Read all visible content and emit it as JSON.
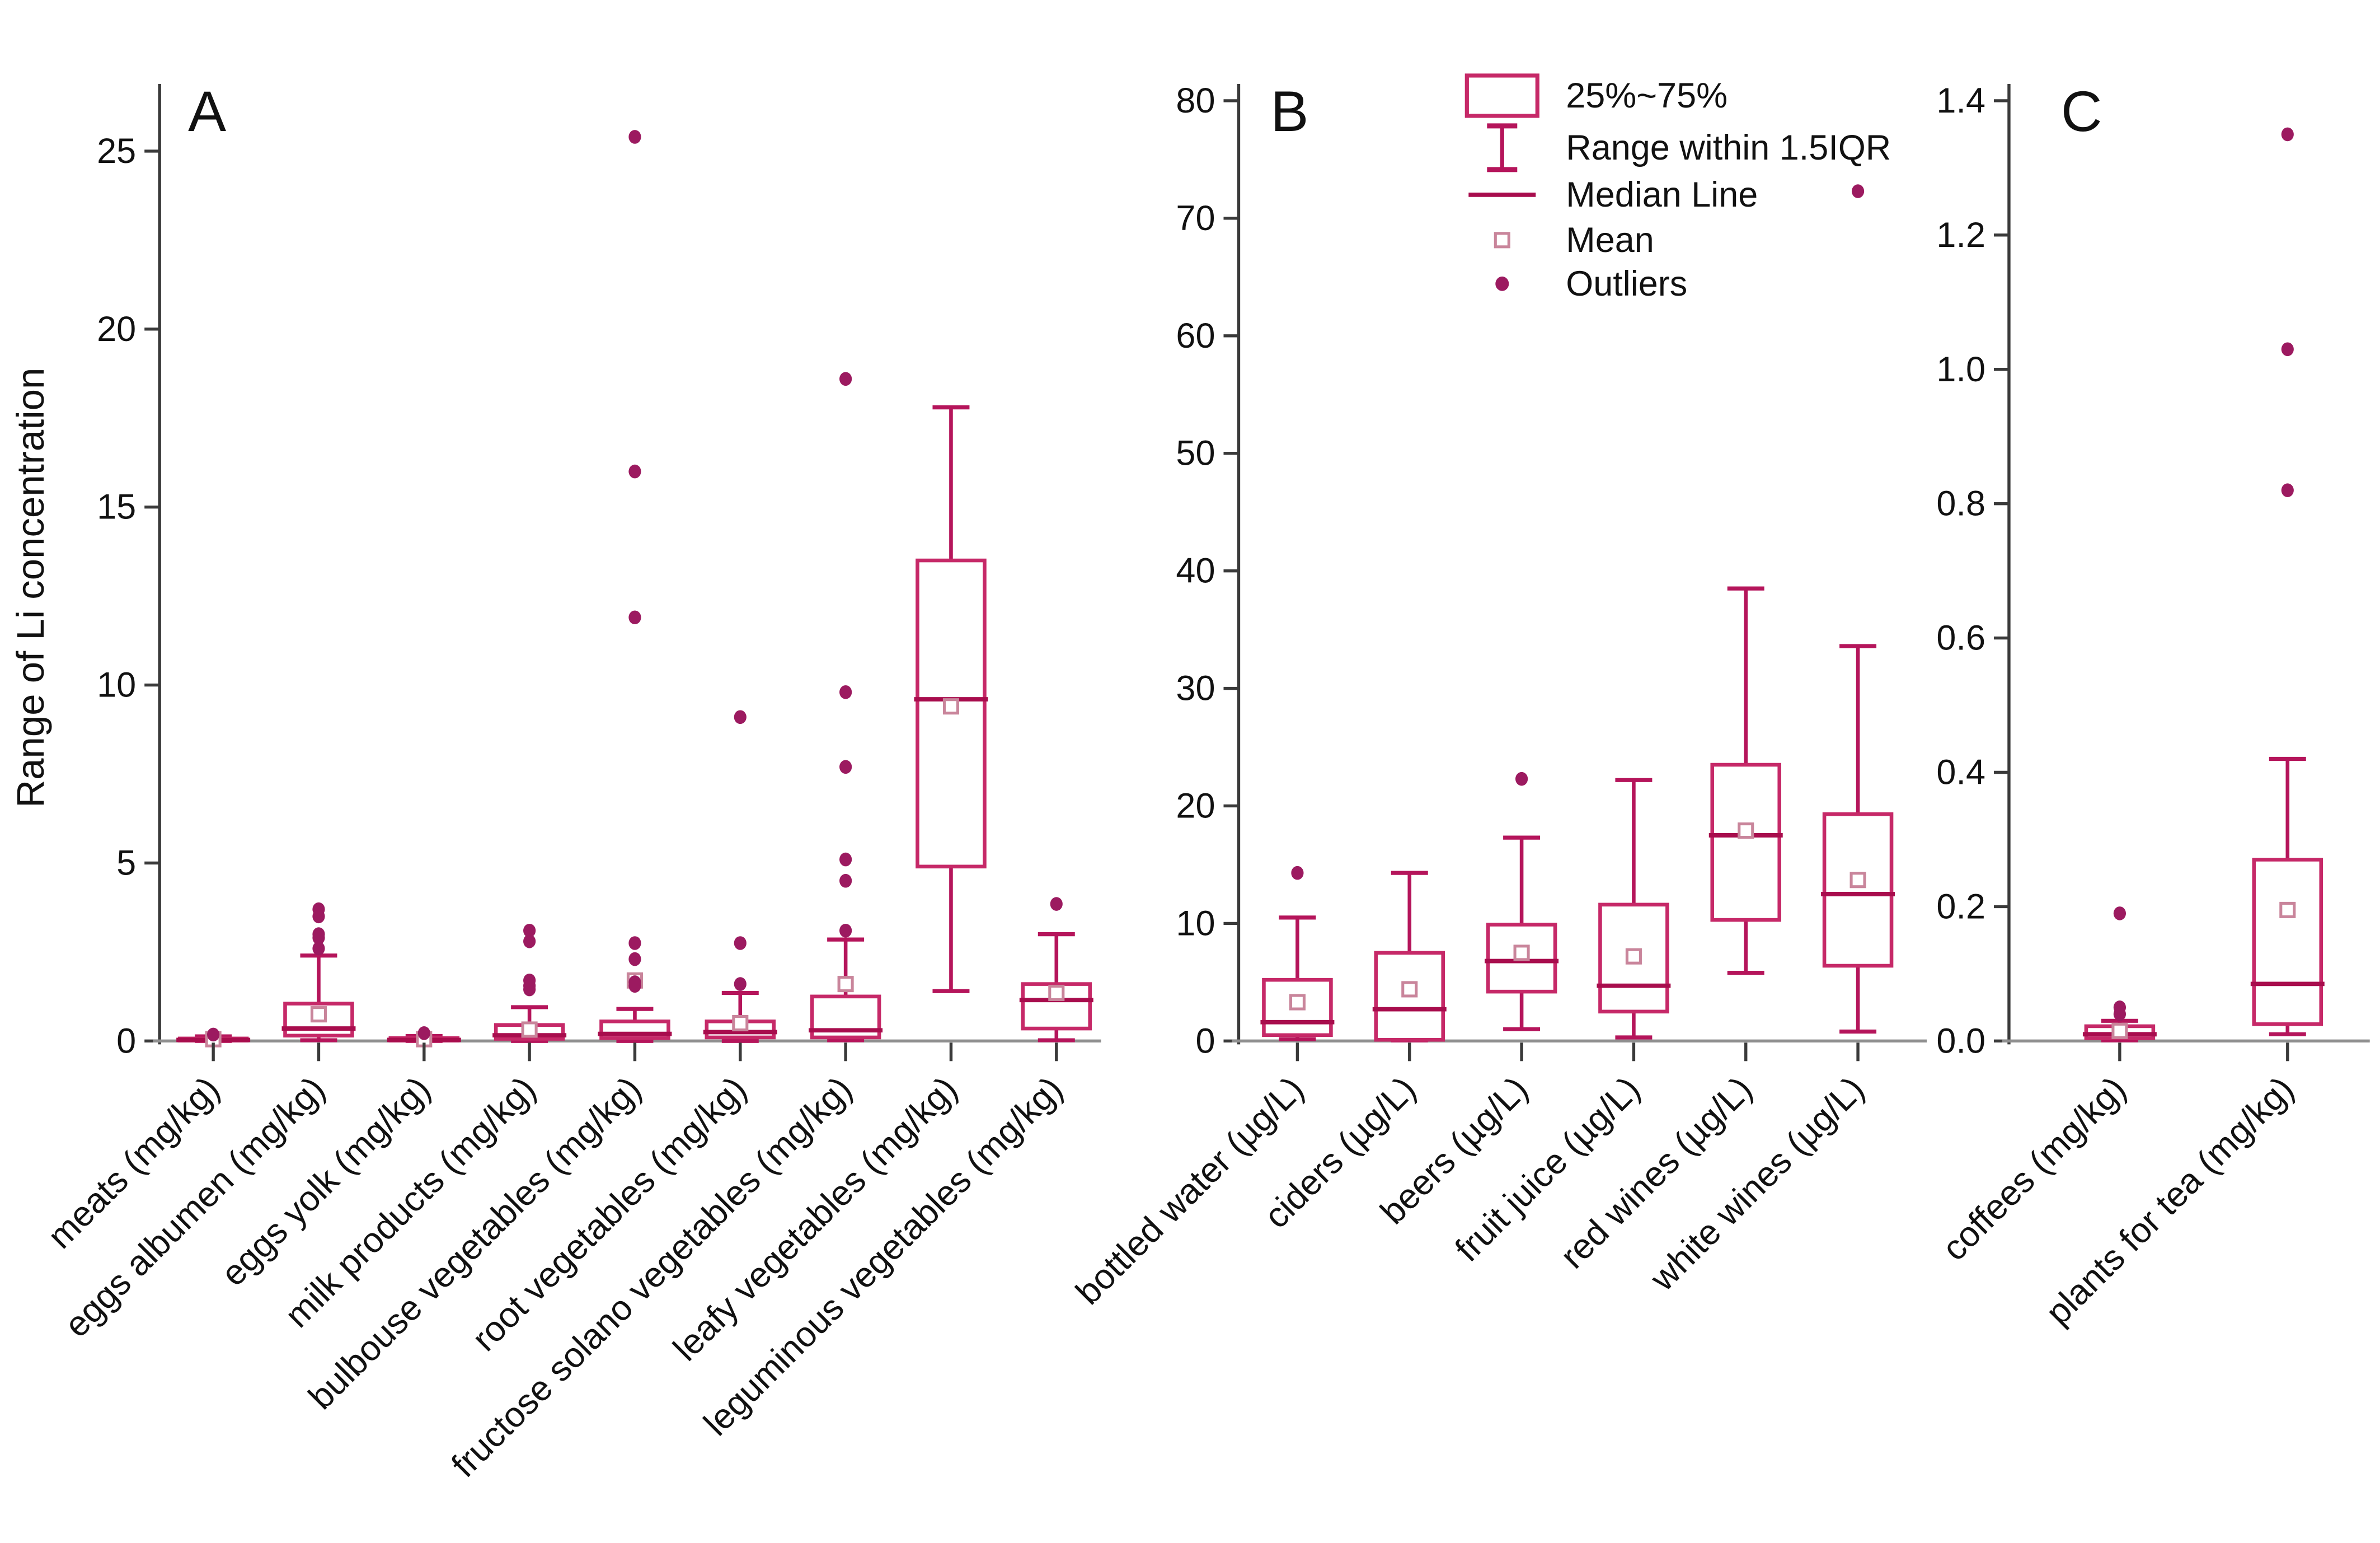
{
  "chart_data": {
    "type": "boxplot",
    "title": "",
    "figure": {
      "ylabel": "Range of Li concentration",
      "background": "#ffffff"
    },
    "colors": {
      "box_edge": "#C62968",
      "median": "#A80D4D",
      "whisker": "#B5155B",
      "outlier": "#9C1A60",
      "mean_edge": "#C9859B",
      "panel_letter": "#2230CE",
      "axis": "#3a3a3a",
      "baseline": "#8f8f8f",
      "tick_text": "#111111"
    },
    "legend": {
      "position": "top-center-above-panel-B",
      "items": [
        "25%~75%",
        "Range within 1.5IQR",
        "Median Line",
        "Mean",
        "Outliers"
      ]
    },
    "panels": [
      {
        "label": "A",
        "ylim": [
          0,
          26.9
        ],
        "yticks": [
          0,
          5,
          10,
          15,
          20,
          25
        ],
        "ytick_labels": [
          "0",
          "5",
          "10",
          "15",
          "20",
          "25"
        ],
        "grid": false,
        "categories": [
          "meats (mg/kg)",
          "eggs albumen (mg/kg)",
          "eggs yolk (mg/kg)",
          "milk products (mg/kg)",
          "bulbouse vegetables (mg/kg)",
          "root vegetables (mg/kg)",
          "fructose solano vegetables (mg/kg)",
          "leafy vegetables (mg/kg)",
          "leguminous vegetables (mg/kg)"
        ],
        "boxes": [
          {
            "category": "meats (mg/kg)",
            "q1": 0.01,
            "median": 0.03,
            "q3": 0.07,
            "whisker_low": 0.0,
            "whisker_high": 0.13,
            "mean": 0.05,
            "outliers": [
              0.18
            ]
          },
          {
            "category": "eggs albumen (mg/kg)",
            "q1": 0.15,
            "median": 0.35,
            "q3": 1.05,
            "whisker_low": 0.02,
            "whisker_high": 2.4,
            "mean": 0.75,
            "outliers": [
              2.6,
              2.9,
              3.0,
              3.5,
              3.7
            ]
          },
          {
            "category": "eggs yolk (mg/kg)",
            "q1": 0.01,
            "median": 0.03,
            "q3": 0.08,
            "whisker_low": 0.0,
            "whisker_high": 0.14,
            "mean": 0.05,
            "outliers": [
              0.22
            ]
          },
          {
            "category": "milk products (mg/kg)",
            "q1": 0.06,
            "median": 0.16,
            "q3": 0.45,
            "whisker_low": 0.0,
            "whisker_high": 0.95,
            "mean": 0.32,
            "outliers": [
              1.45,
              1.55,
              1.7,
              2.8,
              3.1
            ]
          },
          {
            "category": "bulbouse vegetables (mg/kg)",
            "q1": 0.08,
            "median": 0.2,
            "q3": 0.55,
            "whisker_low": 0.0,
            "whisker_high": 0.9,
            "mean": 1.7,
            "outliers": [
              1.55,
              1.65,
              2.3,
              2.75,
              11.9,
              16.0,
              25.4
            ]
          },
          {
            "category": "root vegetables (mg/kg)",
            "q1": 0.1,
            "median": 0.25,
            "q3": 0.55,
            "whisker_low": 0.0,
            "whisker_high": 1.35,
            "mean": 0.5,
            "outliers": [
              1.6,
              2.75,
              9.1
            ]
          },
          {
            "category": "fructose solano vegetables (mg/kg)",
            "q1": 0.1,
            "median": 0.3,
            "q3": 1.25,
            "whisker_low": 0.02,
            "whisker_high": 2.85,
            "mean": 1.6,
            "outliers": [
              3.1,
              4.5,
              5.1,
              7.7,
              9.8,
              18.6
            ]
          },
          {
            "category": "leafy vegetables (mg/kg)",
            "q1": 4.9,
            "median": 9.6,
            "q3": 13.5,
            "whisker_low": 1.4,
            "whisker_high": 17.8,
            "mean": 9.4,
            "outliers": []
          },
          {
            "category": "leguminous vegetables (mg/kg)",
            "q1": 0.35,
            "median": 1.15,
            "q3": 1.6,
            "whisker_low": 0.02,
            "whisker_high": 3.0,
            "mean": 1.35,
            "outliers": [
              3.85
            ]
          }
        ]
      },
      {
        "label": "B",
        "ylim": [
          0,
          80
        ],
        "yticks": [
          0,
          10,
          20,
          30,
          40,
          50,
          60,
          70,
          80
        ],
        "ytick_labels": [
          "0",
          "10",
          "20",
          "30",
          "40",
          "50",
          "60",
          "70",
          "80"
        ],
        "grid": false,
        "categories": [
          "bottled water (µg/L)",
          "ciders (µg/L)",
          "beers (µg/L)",
          "fruit juice (µg/L)",
          "red wines (µg/L)",
          "white wines (µg/L)"
        ],
        "boxes": [
          {
            "category": "bottled water (µg/L)",
            "q1": 0.5,
            "median": 1.6,
            "q3": 5.2,
            "whisker_low": 0.15,
            "whisker_high": 10.5,
            "mean": 3.3,
            "outliers": [
              14.3
            ]
          },
          {
            "category": "ciders (µg/L)",
            "q1": 0.1,
            "median": 2.7,
            "q3": 7.5,
            "whisker_low": 0.05,
            "whisker_high": 14.3,
            "mean": 4.4,
            "outliers": []
          },
          {
            "category": "beers (µg/L)",
            "q1": 4.2,
            "median": 6.8,
            "q3": 9.9,
            "whisker_low": 1.0,
            "whisker_high": 17.3,
            "mean": 7.5,
            "outliers": [
              22.3
            ]
          },
          {
            "category": "fruit juice (µg/L)",
            "q1": 2.5,
            "median": 4.7,
            "q3": 11.6,
            "whisker_low": 0.3,
            "whisker_high": 22.2,
            "mean": 7.2,
            "outliers": []
          },
          {
            "category": "red wines (µg/L)",
            "q1": 10.3,
            "median": 17.5,
            "q3": 23.5,
            "whisker_low": 5.8,
            "whisker_high": 38.5,
            "mean": 17.9,
            "outliers": []
          },
          {
            "category": "white wines (µg/L)",
            "q1": 6.4,
            "median": 12.5,
            "q3": 19.3,
            "whisker_low": 0.8,
            "whisker_high": 33.6,
            "mean": 13.7,
            "outliers": [
              72.3
            ]
          }
        ]
      },
      {
        "label": "C",
        "ylim": [
          0,
          1.4
        ],
        "yticks": [
          0.0,
          0.2,
          0.4,
          0.6,
          0.8,
          1.0,
          1.2,
          1.4
        ],
        "ytick_labels": [
          "0.0",
          "0.2",
          "0.4",
          "0.6",
          "0.8",
          "1.0",
          "1.2",
          "1.4"
        ],
        "grid": false,
        "categories": [
          "coffees (mg/kg)",
          "plants for tea (mg/kg)"
        ],
        "boxes": [
          {
            "category": "coffees (mg/kg)",
            "q1": 0.004,
            "median": 0.01,
            "q3": 0.022,
            "whisker_low": 0.001,
            "whisker_high": 0.03,
            "mean": 0.015,
            "outliers": [
              0.04,
              0.05,
              0.19
            ]
          },
          {
            "category": "plants for tea (mg/kg)",
            "q1": 0.025,
            "median": 0.085,
            "q3": 0.27,
            "whisker_low": 0.01,
            "whisker_high": 0.42,
            "mean": 0.195,
            "outliers": [
              0.82,
              1.03,
              1.35
            ]
          }
        ]
      }
    ]
  }
}
